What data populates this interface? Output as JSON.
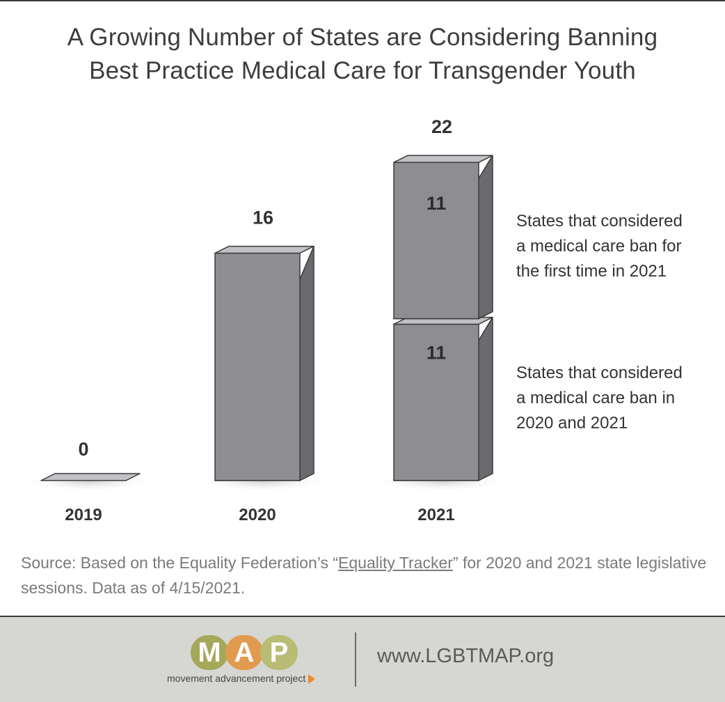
{
  "title_lines": [
    "A Growing Number of States are Considering Banning",
    "Best Practice Medical Care for Transgender Youth"
  ],
  "chart_data": {
    "type": "bar",
    "categories": [
      "2019",
      "2020",
      "2021"
    ],
    "totals": [
      0,
      16,
      22
    ],
    "series": [
      {
        "name": "States that considered a medical care ban in 2020 and 2021",
        "values": [
          0,
          16,
          11
        ]
      },
      {
        "name": "States that considered a medical care ban for the first time in 2021",
        "values": [
          0,
          0,
          11
        ]
      }
    ],
    "ylim": [
      0,
      22
    ],
    "xlabel": "",
    "ylabel": ""
  },
  "legend": {
    "first_time": [
      "States that considered",
      "a medical care ban for",
      "the first time in 2021"
    ],
    "continuing": [
      "States that considered",
      "a medical care ban in",
      "2020 and 2021"
    ]
  },
  "source": {
    "before": "Source: Based on the Equality Federation’s “",
    "link": "Equality Tracker",
    "after": "” for 2020 and 2021 state legislative sessions. Data as of 4/15/2021."
  },
  "footer": {
    "logo_letters": [
      "M",
      "A",
      "P"
    ],
    "logo_tagline": "movement advancement project",
    "url": "www.LGBTMAP.org"
  },
  "colors": {
    "bar_front": "#8e8e92",
    "bar_side": "#6b6b6f",
    "bar_top": "#c2c2c6",
    "bar_edge": "#3a3a3a",
    "logo_m": "#a3a85a",
    "logo_a": "#e29a4e",
    "logo_p": "#b8bc74",
    "logo_arrow": "#f08a2c"
  }
}
